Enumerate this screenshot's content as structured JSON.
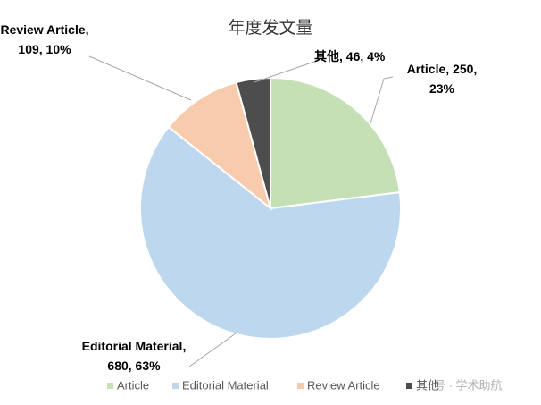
{
  "chart_data": {
    "type": "pie",
    "title": "年度发文量",
    "categories": [
      "Article",
      "Editorial Material",
      "Review Article",
      "其他"
    ],
    "values": [
      250,
      680,
      109,
      46
    ],
    "value_labels": [
      "Article, 250, 23%",
      "Editorial Material, 680, 63%",
      "Review Article, 109, 10%",
      "其他, 46, 4%"
    ],
    "colors": [
      "#c5e0b4",
      "#bdd7ee",
      "#f8cbad",
      "#4d4d4d"
    ],
    "legend": "bottom"
  },
  "watermark": "号 · 学术助航"
}
